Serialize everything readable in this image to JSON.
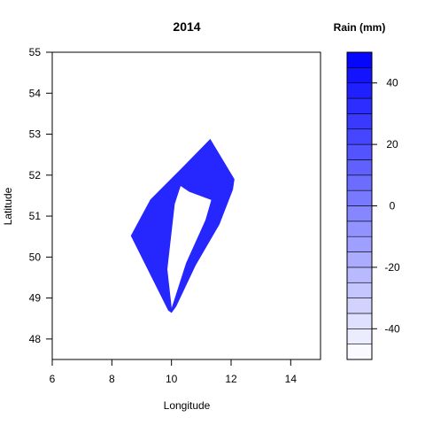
{
  "chart_data": {
    "type": "heatmap",
    "title": "2014",
    "xlabel": "Longitude",
    "ylabel": "Latitude",
    "xlim": [
      6,
      15
    ],
    "ylim": [
      47.5,
      55
    ],
    "x_ticks": [
      "6",
      "8",
      "10",
      "12",
      "14"
    ],
    "y_ticks": [
      "48",
      "49",
      "50",
      "51",
      "52",
      "53",
      "54",
      "55"
    ],
    "legend": {
      "title": "Rain (mm)",
      "range": [
        -50,
        50
      ],
      "step": 5,
      "ticks": [
        "-40",
        "-20",
        "0",
        "20",
        "40"
      ],
      "low_color": "#ffffff",
      "high_color": "#0000ff"
    },
    "region": {
      "outer": [
        [
          8.65,
          50.52
        ],
        [
          9.3,
          51.4
        ],
        [
          10.4,
          52.2
        ],
        [
          11.3,
          52.87
        ],
        [
          12.1,
          51.9
        ],
        [
          12.05,
          51.65
        ],
        [
          11.6,
          50.8
        ],
        [
          10.8,
          49.8
        ],
        [
          10.15,
          48.8
        ],
        [
          10.0,
          48.65
        ],
        [
          9.9,
          48.7
        ]
      ],
      "hole": [
        [
          10.3,
          51.75
        ],
        [
          10.6,
          51.6
        ],
        [
          11.35,
          51.4
        ],
        [
          11.15,
          50.9
        ],
        [
          10.5,
          49.85
        ],
        [
          10.0,
          48.72
        ],
        [
          9.85,
          49.7
        ],
        [
          10.1,
          51.3
        ]
      ],
      "fill_value": 35
    }
  }
}
